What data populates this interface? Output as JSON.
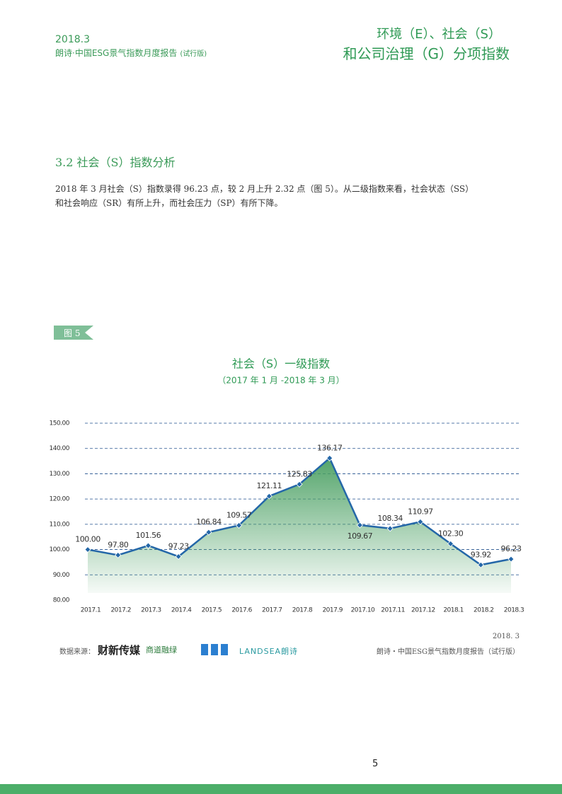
{
  "header": {
    "date": "2018.3",
    "report": "朗诗·中国ESG景气指数月度报告",
    "report_note": "(试行版)",
    "topic_line1": "环境（E）、社会（S）",
    "topic_line2": "和公司治理（G）分项指数"
  },
  "section": {
    "title": "3.2 社会（S）指数分析",
    "paragraph_line1": "2018 年 3 月社会（S）指数录得 96.23 点，较 2 月上升 2.32 点（图 5）。从二级指数来看，社会状态（SS）",
    "paragraph_line2": "和社会响应（SR）有所上升，而社会压力（SP）有所下降。"
  },
  "figure": {
    "label": "图 5"
  },
  "chart_data": {
    "type": "area",
    "title": "社会（S）一级指数",
    "subtitle": "（2017 年 1 月 -2018 年 3 月）",
    "categories": [
      "2017.1",
      "2017.2",
      "2017.3",
      "2017.4",
      "2017.5",
      "2017.6",
      "2017.7",
      "2017.8",
      "2017.9",
      "2017.10",
      "2017.11",
      "2017.12",
      "2018.1",
      "2018.2",
      "2018.3"
    ],
    "series": [
      {
        "color": "#2467a8",
        "fill_color": "#4ba063",
        "values": [
          100,
          97.8,
          101.56,
          97.23,
          106.84,
          109.57,
          121.11,
          125.83,
          136.17,
          109.67,
          108.34,
          110.97,
          102.3,
          93.92,
          96.23
        ],
        "value_labels": [
          "100.00",
          "97.80",
          "101.56",
          "97.23",
          "106.84",
          "109.57",
          "121.11",
          "125.83",
          "136.17",
          "109.67",
          "108.34",
          "110.97",
          "102.30",
          "93.92",
          "96.23"
        ]
      }
    ],
    "ylim": [
      80,
      150
    ],
    "yticks": [
      {
        "value": 80,
        "label": "80.00"
      },
      {
        "value": 90,
        "label": "90.00"
      },
      {
        "value": 100,
        "label": "100.00"
      },
      {
        "value": 110,
        "label": "110.00"
      },
      {
        "value": 120,
        "label": "120.00"
      },
      {
        "value": 130,
        "label": "130.00"
      },
      {
        "value": 140,
        "label": "140.00"
      },
      {
        "value": 150,
        "label": "150.00"
      }
    ],
    "grid": true
  },
  "source": {
    "label": "数据来源：",
    "logos": [
      "财新传媒",
      "商道融绿",
      "LANDSEA",
      "朗诗"
    ]
  },
  "footer": {
    "date": "2018. 3",
    "report": "朗诗・中国ESG景气指数月度报告（试行版）",
    "page_number": "5"
  }
}
